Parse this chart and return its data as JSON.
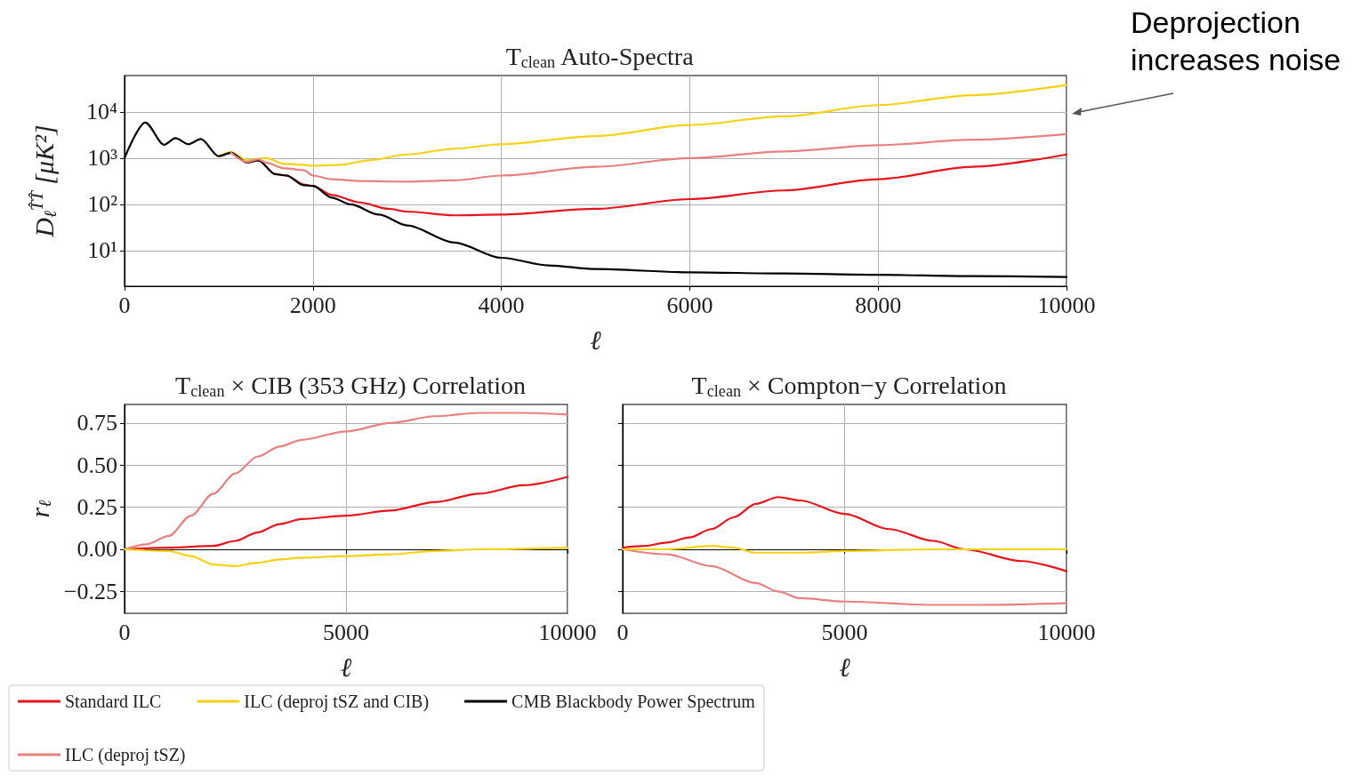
{
  "chart_data": [
    {
      "type": "line",
      "title": "T$_{clean}$ Auto-Spectra",
      "xlabel": "ℓ",
      "ylabel": "D$_{ℓ}$$^{T̂T̂}$ [μK²]",
      "log": "y",
      "grid": true,
      "marker": "none",
      "legend": "bottom",
      "xlim": [
        0,
        10000
      ],
      "xticks": [
        0,
        2000,
        4000,
        6000,
        8000,
        10000
      ],
      "ylim": [
        1.7,
        61000
      ],
      "yticks": [
        {
          "value": 10,
          "label": "10¹"
        },
        {
          "value": 100,
          "label": "10²"
        },
        {
          "value": 1000,
          "label": "10³"
        },
        {
          "value": 10000,
          "label": "10⁴"
        }
      ],
      "annotations": [
        "Deprojection increases noise"
      ],
      "series": [
        {
          "name": "Standard ILC",
          "color": "#e8141c",
          "x": [
            1300,
            1420,
            1600,
            1720,
            1900,
            2000,
            2200,
            2500,
            2800,
            3000,
            3500,
            4000,
            5000,
            6000,
            7000,
            8000,
            9000,
            10000
          ],
          "values": [
            800,
            900,
            450,
            420,
            270,
            250,
            160,
            110,
            80,
            70,
            58,
            60,
            80,
            130,
            200,
            350,
            650,
            1200
          ]
        },
        {
          "name": "ILC (deproj tSZ and CIB)",
          "color": "#f5d214",
          "x": [
            1000,
            1130,
            1300,
            1500,
            1700,
            1900,
            2000,
            2300,
            2600,
            3000,
            3500,
            4000,
            5000,
            6000,
            7000,
            8000,
            9000,
            10000
          ],
          "values": [
            1100,
            1350,
            900,
            1000,
            750,
            720,
            680,
            720,
            900,
            1200,
            1600,
            2000,
            3000,
            5200,
            8000,
            14000,
            23000,
            38000
          ]
        },
        {
          "name": "CMB Blackbody Power Spectrum",
          "color": "#000000",
          "x": [
            0,
            220,
            420,
            540,
            680,
            810,
            1000,
            1130,
            1300,
            1420,
            1600,
            1720,
            1900,
            2000,
            2200,
            2400,
            2700,
            3000,
            3500,
            4000,
            4500,
            5000,
            6000,
            7000,
            8000,
            9000,
            10000
          ],
          "values": [
            1000,
            5900,
            1950,
            2700,
            2000,
            2600,
            1100,
            1300,
            800,
            900,
            450,
            420,
            260,
            250,
            140,
            100,
            60,
            35,
            15,
            7,
            4.8,
            4,
            3.4,
            3.2,
            3,
            2.8,
            2.7
          ]
        },
        {
          "name": "ILC (deproj tSZ)",
          "color": "#e88080",
          "x": [
            1130,
            1300,
            1420,
            1500,
            1700,
            1900,
            2000,
            2200,
            2500,
            3000,
            3500,
            4000,
            5000,
            6000,
            7000,
            8000,
            9000,
            10000
          ],
          "values": [
            1300,
            820,
            950,
            800,
            600,
            550,
            420,
            350,
            320,
            310,
            330,
            420,
            650,
            1000,
            1400,
            1900,
            2500,
            3300
          ]
        }
      ]
    },
    {
      "type": "line",
      "title": "T$_{clean}$ × CIB (353 GHz) Correlation",
      "xlabel": "ℓ",
      "ylabel": "r$_{ℓ}$",
      "grid": true,
      "marker": "none",
      "xlim": [
        0,
        10000
      ],
      "xticks": [
        0,
        5000,
        10000
      ],
      "ylim": [
        -0.38,
        0.86
      ],
      "yticks": [
        {
          "value": -0.25,
          "label": "−0.25"
        },
        {
          "value": 0,
          "label": "0.00"
        },
        {
          "value": 0.25,
          "label": "0.25"
        },
        {
          "value": 0.5,
          "label": "0.50"
        },
        {
          "value": 0.75,
          "label": "0.75"
        }
      ],
      "series": [
        {
          "color": "#e8141c",
          "x": [
            0,
            1000,
            2000,
            2500,
            3000,
            3500,
            4000,
            5000,
            6000,
            7000,
            8000,
            9000,
            10000
          ],
          "values": [
            0,
            0.01,
            0.02,
            0.05,
            0.1,
            0.15,
            0.18,
            0.2,
            0.23,
            0.28,
            0.33,
            0.38,
            0.43
          ]
        },
        {
          "color": "#e88080",
          "x": [
            0,
            500,
            1000,
            1500,
            2000,
            2500,
            3000,
            3500,
            4000,
            5000,
            6000,
            7000,
            8000,
            9000,
            10000
          ],
          "values": [
            0,
            0.03,
            0.08,
            0.2,
            0.33,
            0.45,
            0.55,
            0.61,
            0.65,
            0.7,
            0.75,
            0.79,
            0.81,
            0.81,
            0.8
          ]
        },
        {
          "color": "#f5d214",
          "x": [
            0,
            1000,
            1500,
            2000,
            2500,
            3000,
            3500,
            4000,
            5000,
            6000,
            7000,
            8000,
            10000
          ],
          "values": [
            0,
            -0.01,
            -0.04,
            -0.09,
            -0.1,
            -0.08,
            -0.06,
            -0.05,
            -0.04,
            -0.03,
            -0.01,
            0,
            0.01
          ]
        }
      ]
    },
    {
      "type": "line",
      "title": "T$_{clean}$ × Compton−y Correlation",
      "xlabel": "ℓ",
      "grid": true,
      "marker": "none",
      "tick_labels": "x",
      "xlim": [
        0,
        10000
      ],
      "xticks": [
        0,
        5000,
        10000
      ],
      "ylim": [
        -0.38,
        0.86
      ],
      "yticks": [
        -0.25,
        0,
        0.25,
        0.5,
        0.75
      ],
      "series": [
        {
          "color": "#e8141c",
          "x": [
            0,
            500,
            1000,
            1500,
            2000,
            2500,
            3000,
            3500,
            4000,
            5000,
            6000,
            7000,
            7700,
            9000,
            10000
          ],
          "values": [
            0.01,
            0.02,
            0.04,
            0.07,
            0.12,
            0.19,
            0.27,
            0.31,
            0.29,
            0.21,
            0.12,
            0.05,
            0,
            -0.07,
            -0.13
          ]
        },
        {
          "color": "#e88080",
          "x": [
            0,
            1000,
            2000,
            3000,
            3500,
            4000,
            5000,
            7000,
            8000,
            10000
          ],
          "values": [
            0,
            -0.03,
            -0.1,
            -0.2,
            -0.25,
            -0.29,
            -0.31,
            -0.33,
            -0.33,
            -0.32
          ]
        },
        {
          "color": "#f5d214",
          "x": [
            0,
            1000,
            2000,
            2500,
            3000,
            4000,
            5000,
            7000,
            10000
          ],
          "values": [
            0,
            0,
            0.02,
            0.01,
            -0.02,
            -0.02,
            -0.01,
            0,
            0
          ]
        }
      ]
    }
  ]
}
